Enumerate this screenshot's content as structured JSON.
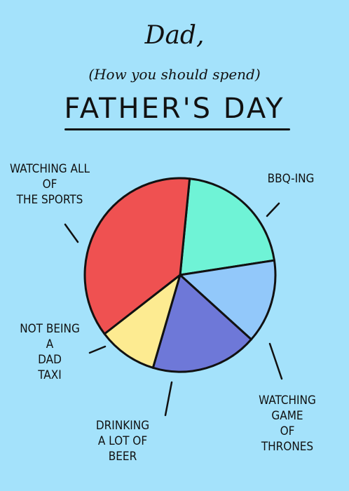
{
  "card": {
    "title": "Dad,",
    "subtitle": "(How you should spend)",
    "heading": "FATHER'S DAY"
  },
  "chart_data": {
    "type": "pie",
    "slices": [
      {
        "label": "BBQ-ING",
        "value": 21,
        "color": "#6ff3d6"
      },
      {
        "label": "WATCHING\nGAME\nOF\nTHRONES",
        "value": 14,
        "color": "#92c8fa"
      },
      {
        "label": "DRINKING\nA LOT OF\nBEER",
        "value": 18,
        "color": "#6e78d8"
      },
      {
        "label": "NOT BEING\nA\nDAD\nTAXI",
        "value": 10,
        "color": "#fdeb91"
      },
      {
        "label": "WATCHING ALL\nOF\nTHE SPORTS",
        "value": 37,
        "color": "#ef5151"
      }
    ]
  }
}
